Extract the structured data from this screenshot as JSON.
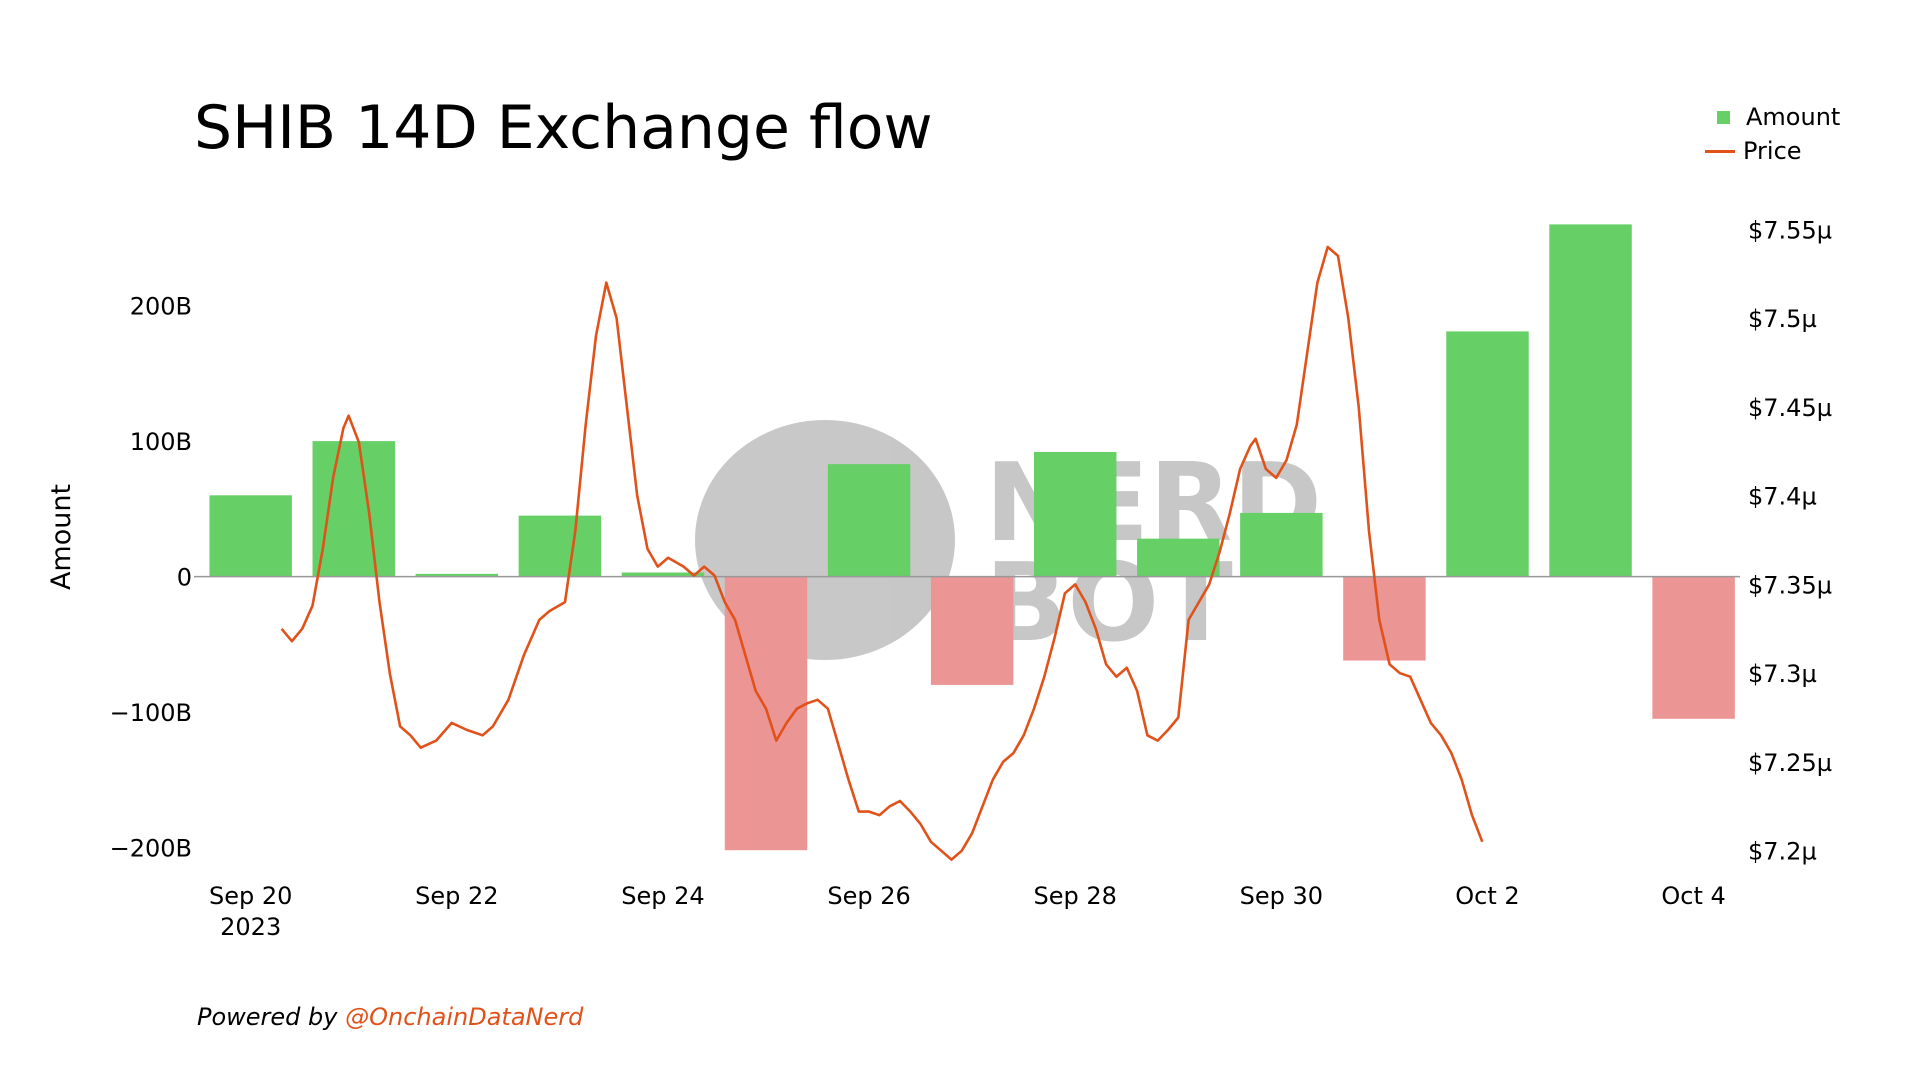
{
  "colors": {
    "positive": "#66cf66",
    "negative": "#ec9595",
    "price_line": "#e0521a",
    "zero_line": "#999999",
    "watermark": "#9a9a9a"
  },
  "chart_data": {
    "type": "bar",
    "title": "SHIB 14D Exchange flow",
    "ylabel": "Amount",
    "ylabel_right": "",
    "legend": [
      {
        "name": "Amount",
        "kind": "square"
      },
      {
        "name": "Price",
        "kind": "line"
      }
    ],
    "legend_position": "top-right",
    "ylim": [
      -224,
      278
    ],
    "y_ticks": [
      {
        "value": 200,
        "label": "200B"
      },
      {
        "value": 100,
        "label": "100B"
      },
      {
        "value": 0,
        "label": "0"
      },
      {
        "value": -100,
        "label": "−100B"
      },
      {
        "value": -200,
        "label": "−200B"
      }
    ],
    "y2lim": [
      7.1835,
      7.5665
    ],
    "y2_ticks": [
      {
        "value": 7.55,
        "label": "$7.55µ"
      },
      {
        "value": 7.5,
        "label": "$7.5µ"
      },
      {
        "value": 7.45,
        "label": "$7.45µ"
      },
      {
        "value": 7.4,
        "label": "$7.4µ"
      },
      {
        "value": 7.35,
        "label": "$7.35µ"
      },
      {
        "value": 7.3,
        "label": "$7.3µ"
      },
      {
        "value": 7.25,
        "label": "$7.25µ"
      },
      {
        "value": 7.2,
        "label": "$7.2µ"
      }
    ],
    "xlim": [
      19.45,
      34.45
    ],
    "x_ticks": [
      {
        "value": 20,
        "label": "Sep 20",
        "sublabel": "2023"
      },
      {
        "value": 22,
        "label": "Sep 22",
        "sublabel": ""
      },
      {
        "value": 24,
        "label": "Sep 24",
        "sublabel": ""
      },
      {
        "value": 26,
        "label": "Sep 26",
        "sublabel": ""
      },
      {
        "value": 28,
        "label": "Sep 28",
        "sublabel": ""
      },
      {
        "value": 30,
        "label": "Sep 30",
        "sublabel": ""
      },
      {
        "value": 32,
        "label": "Oct 2",
        "sublabel": ""
      },
      {
        "value": 34,
        "label": "Oct 4",
        "sublabel": ""
      }
    ],
    "series": [
      {
        "name": "Amount",
        "type": "bar",
        "x": [
          20,
          21,
          22,
          23,
          24,
          25,
          26,
          27,
          28,
          29,
          30,
          31,
          32,
          33,
          34
        ],
        "values": [
          60,
          100,
          2,
          45,
          3,
          -202,
          83,
          -80,
          92,
          28,
          47,
          -62,
          181,
          260,
          -105
        ]
      },
      {
        "name": "Price",
        "type": "line",
        "points": [
          [
            20.3,
            7.325
          ],
          [
            20.4,
            7.318
          ],
          [
            20.5,
            7.325
          ],
          [
            20.6,
            7.338
          ],
          [
            20.7,
            7.37
          ],
          [
            20.8,
            7.41
          ],
          [
            20.9,
            7.438
          ],
          [
            20.95,
            7.445
          ],
          [
            21.05,
            7.43
          ],
          [
            21.15,
            7.39
          ],
          [
            21.25,
            7.34
          ],
          [
            21.35,
            7.3
          ],
          [
            21.45,
            7.27
          ],
          [
            21.55,
            7.265
          ],
          [
            21.65,
            7.258
          ],
          [
            21.8,
            7.262
          ],
          [
            21.95,
            7.272
          ],
          [
            22.1,
            7.268
          ],
          [
            22.25,
            7.265
          ],
          [
            22.35,
            7.27
          ],
          [
            22.5,
            7.285
          ],
          [
            22.65,
            7.31
          ],
          [
            22.8,
            7.33
          ],
          [
            22.9,
            7.335
          ],
          [
            23.05,
            7.34
          ],
          [
            23.15,
            7.38
          ],
          [
            23.25,
            7.44
          ],
          [
            23.35,
            7.49
          ],
          [
            23.45,
            7.52
          ],
          [
            23.55,
            7.5
          ],
          [
            23.65,
            7.45
          ],
          [
            23.75,
            7.4
          ],
          [
            23.85,
            7.37
          ],
          [
            23.95,
            7.36
          ],
          [
            24.05,
            7.365
          ],
          [
            24.2,
            7.36
          ],
          [
            24.3,
            7.355
          ],
          [
            24.4,
            7.36
          ],
          [
            24.5,
            7.355
          ],
          [
            24.6,
            7.34
          ],
          [
            24.7,
            7.33
          ],
          [
            24.8,
            7.31
          ],
          [
            24.9,
            7.29
          ],
          [
            25.0,
            7.28
          ],
          [
            25.1,
            7.262
          ],
          [
            25.2,
            7.272
          ],
          [
            25.3,
            7.28
          ],
          [
            25.4,
            7.283
          ],
          [
            25.5,
            7.285
          ],
          [
            25.6,
            7.28
          ],
          [
            25.7,
            7.26
          ],
          [
            25.8,
            7.24
          ],
          [
            25.9,
            7.222
          ],
          [
            26.0,
            7.222
          ],
          [
            26.1,
            7.22
          ],
          [
            26.2,
            7.225
          ],
          [
            26.3,
            7.228
          ],
          [
            26.4,
            7.222
          ],
          [
            26.5,
            7.215
          ],
          [
            26.6,
            7.205
          ],
          [
            26.7,
            7.2
          ],
          [
            26.8,
            7.195
          ],
          [
            26.9,
            7.2
          ],
          [
            27.0,
            7.21
          ],
          [
            27.1,
            7.225
          ],
          [
            27.2,
            7.24
          ],
          [
            27.3,
            7.25
          ],
          [
            27.4,
            7.255
          ],
          [
            27.5,
            7.265
          ],
          [
            27.6,
            7.28
          ],
          [
            27.7,
            7.298
          ],
          [
            27.8,
            7.32
          ],
          [
            27.9,
            7.345
          ],
          [
            28.0,
            7.35
          ],
          [
            28.1,
            7.34
          ],
          [
            28.2,
            7.325
          ],
          [
            28.3,
            7.305
          ],
          [
            28.4,
            7.298
          ],
          [
            28.5,
            7.303
          ],
          [
            28.6,
            7.29
          ],
          [
            28.7,
            7.265
          ],
          [
            28.8,
            7.262
          ],
          [
            28.9,
            7.268
          ],
          [
            29.0,
            7.275
          ],
          [
            29.1,
            7.33
          ],
          [
            29.2,
            7.34
          ],
          [
            29.3,
            7.35
          ],
          [
            29.4,
            7.368
          ],
          [
            29.5,
            7.39
          ],
          [
            29.6,
            7.415
          ],
          [
            29.7,
            7.428
          ],
          [
            29.75,
            7.432
          ],
          [
            29.85,
            7.415
          ],
          [
            29.95,
            7.41
          ],
          [
            30.05,
            7.42
          ],
          [
            30.15,
            7.44
          ],
          [
            30.25,
            7.48
          ],
          [
            30.35,
            7.52
          ],
          [
            30.45,
            7.54
          ],
          [
            30.55,
            7.535
          ],
          [
            30.65,
            7.5
          ],
          [
            30.75,
            7.45
          ],
          [
            30.85,
            7.38
          ],
          [
            30.95,
            7.33
          ],
          [
            31.05,
            7.305
          ],
          [
            31.15,
            7.3
          ],
          [
            31.25,
            7.298
          ],
          [
            31.35,
            7.285
          ],
          [
            31.45,
            7.272
          ],
          [
            31.55,
            7.265
          ],
          [
            31.65,
            7.255
          ],
          [
            31.75,
            7.24
          ],
          [
            31.85,
            7.22
          ],
          [
            31.95,
            7.205
          ]
        ]
      }
    ]
  },
  "watermark": {
    "line1": "NERD",
    "line2": "BOT"
  },
  "footer": {
    "prefix": "Powered by",
    "handle": "@OnchainDataNerd"
  }
}
